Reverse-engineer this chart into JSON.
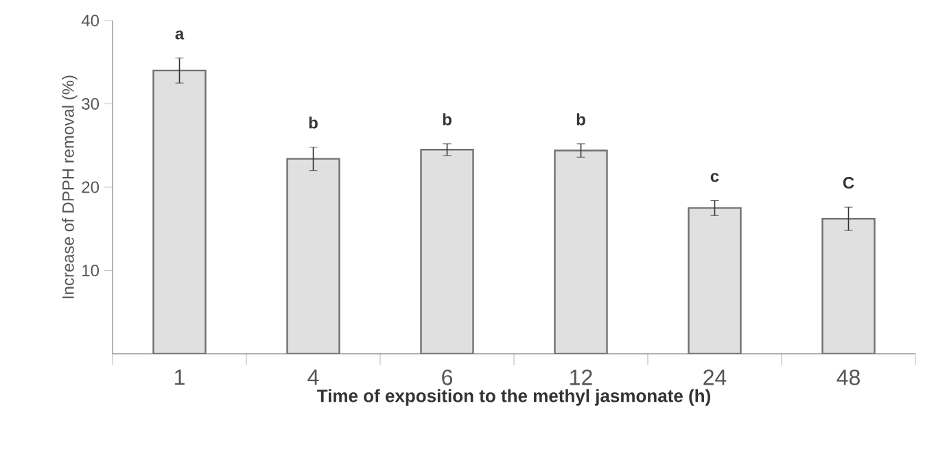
{
  "chart_data": {
    "type": "bar",
    "xlabel": "Time of exposition to the methyl jasmonate (h)",
    "ylabel": "Increase of DPPH removal (%)",
    "categories": [
      "1",
      "4",
      "6",
      "12",
      "24",
      "48"
    ],
    "values": [
      34,
      23.4,
      24.5,
      24.4,
      17.5,
      16.2
    ],
    "errors": [
      1.5,
      1.4,
      0.7,
      0.8,
      0.9,
      1.4
    ],
    "color": "#e0e0e0",
    "ylim": [
      0,
      40
    ],
    "yticks": [
      10,
      20,
      30,
      40
    ],
    "grid": false,
    "annotations": [
      "a",
      "b",
      "b",
      "b",
      "c",
      "C"
    ]
  }
}
